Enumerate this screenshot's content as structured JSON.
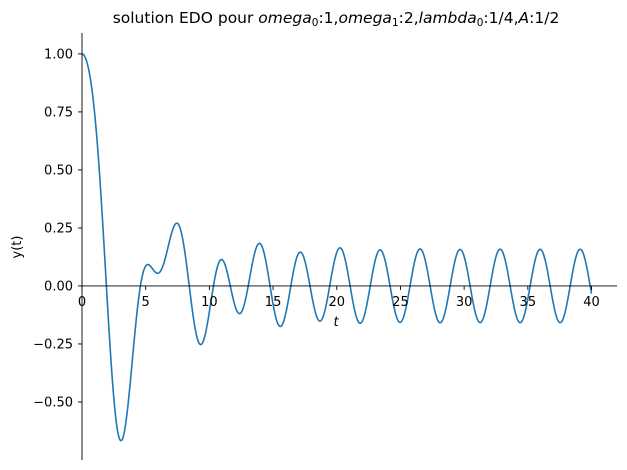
{
  "chart_data": {
    "type": "line",
    "title": {
      "prefix": "solution EDO pour ",
      "parts": [
        {
          "base": "omega",
          "sub": "0",
          "rest": ":1,"
        },
        {
          "base": "omega",
          "sub": "1",
          "rest": ":2,"
        },
        {
          "base": "lambda",
          "sub": "0",
          "rest": ":1/4,"
        },
        {
          "base": "A",
          "sub": "",
          "rest": ":1/2"
        }
      ]
    },
    "parameters": {
      "omega_0": 1,
      "omega_1": 2,
      "lambda_0": 0.25,
      "A": 0.5,
      "y0": 1,
      "dy0": 0
    },
    "xlabel": "t",
    "ylabel": "y(t)",
    "xlim": [
      0,
      42
    ],
    "ylim": [
      -0.75,
      1.09
    ],
    "x_ticks": [
      0,
      5,
      10,
      15,
      20,
      25,
      30,
      35,
      40
    ],
    "x_tick_labels": [
      "0",
      "5",
      "10",
      "15",
      "20",
      "25",
      "30",
      "35",
      "40"
    ],
    "y_ticks": [
      1.0,
      0.75,
      0.5,
      0.25,
      0.0,
      -0.25,
      -0.5
    ],
    "y_tick_labels": [
      "1.00",
      "0.75",
      "0.50",
      "0.25",
      "0.00",
      "−0.25",
      "−0.50"
    ],
    "grid": false,
    "color": "#1f77b4",
    "series": [
      {
        "x": [
          0,
          1,
          2,
          3,
          4,
          5,
          6,
          7,
          8,
          9,
          10,
          11,
          12,
          13,
          14,
          15,
          16,
          17,
          18,
          19,
          20,
          21,
          22,
          23,
          24,
          25,
          26,
          27,
          28,
          29,
          30,
          31,
          32,
          33,
          34,
          35,
          36,
          37,
          38,
          39,
          40
        ],
        "y": [
          1.0,
          0.74,
          -0.08,
          -0.66,
          -0.29,
          0.09,
          0.06,
          0.22,
          0.17,
          -0.22,
          -0.11,
          0.11,
          -0.08,
          -0.01,
          0.18,
          -0.08,
          -0.12,
          0.14,
          -0.03,
          -0.12,
          0.14,
          0.02,
          -0.15,
          0.11,
          0.06,
          -0.16,
          0.07,
          0.1,
          -0.15,
          0.03,
          0.13,
          -0.14,
          -0.01,
          0.15,
          -0.11,
          -0.06,
          0.16,
          -0.07,
          -0.1,
          0.15,
          -0.03
        ]
      }
    ]
  }
}
